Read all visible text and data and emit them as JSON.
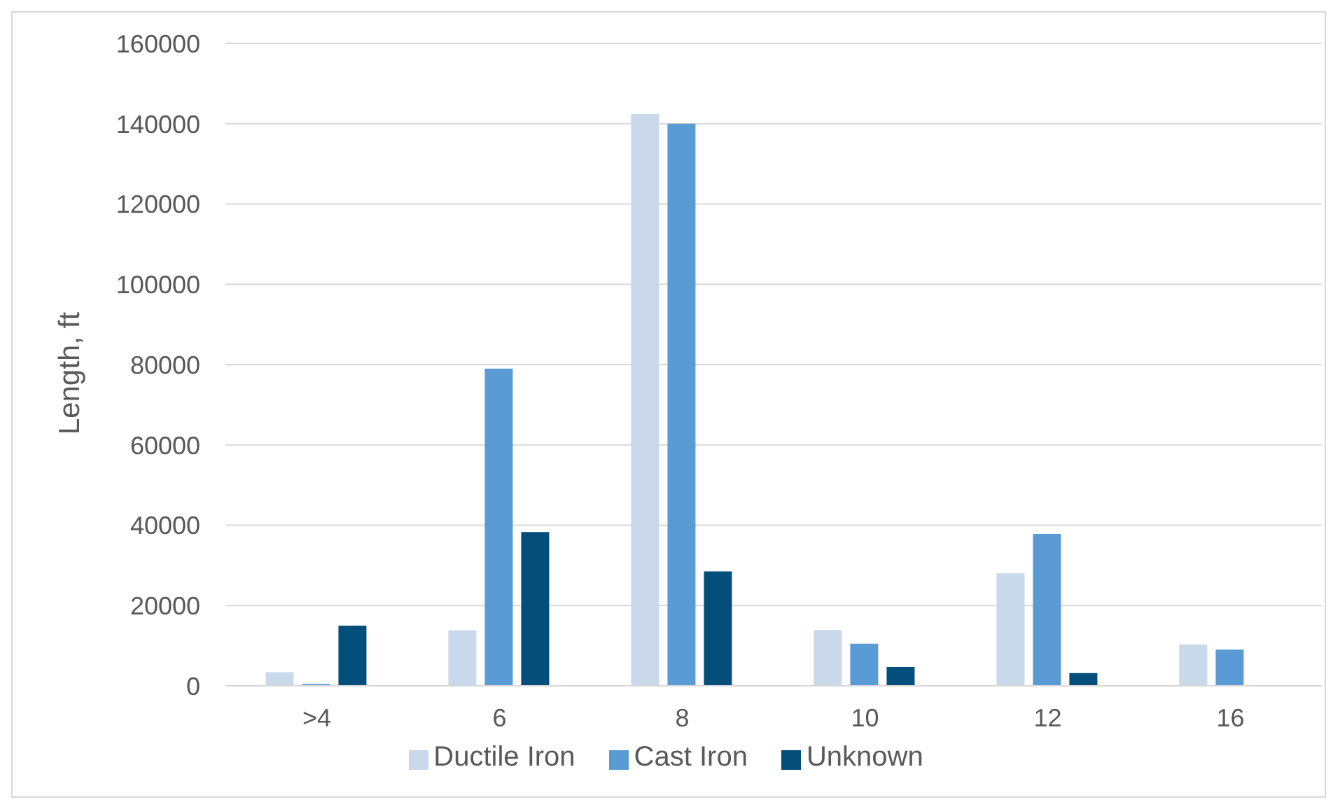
{
  "chart_data": {
    "type": "bar",
    "ylabel": "Length, ft",
    "categories": [
      ">4",
      "6",
      "8",
      "10",
      "12",
      "16"
    ],
    "series": [
      {
        "name": "Ductile Iron",
        "color": "#c9d9eb",
        "values": [
          3400,
          13800,
          142400,
          13900,
          28000,
          10300
        ]
      },
      {
        "name": "Cast Iron",
        "color": "#5b9bd5",
        "values": [
          500,
          79000,
          140000,
          10500,
          37800,
          9000
        ]
      },
      {
        "name": "Unknown",
        "color": "#044e7c",
        "values": [
          15000,
          38300,
          28500,
          4700,
          3200,
          0
        ]
      }
    ],
    "ylim": [
      0,
      160000
    ],
    "yticks": [
      0,
      20000,
      40000,
      60000,
      80000,
      100000,
      120000,
      140000,
      160000
    ],
    "grid": "y",
    "legend": "bottom"
  }
}
